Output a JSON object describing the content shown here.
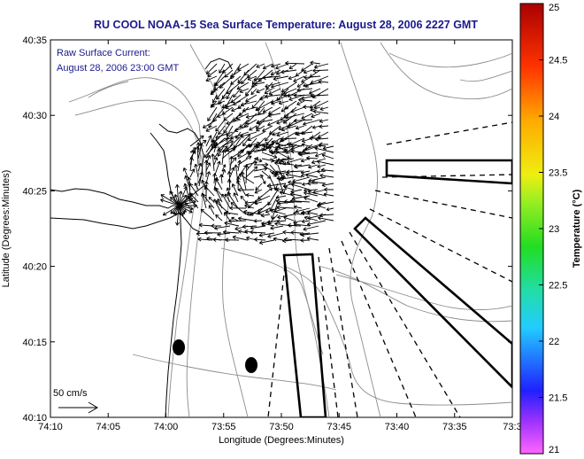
{
  "chart_data": {
    "type": "map",
    "title": "RU COOL  NOAA-15  Sea Surface Temperature:  August 28, 2006 2227 GMT",
    "annotation": [
      "Raw Surface Current:",
      "August 28, 2006 23:00 GMT"
    ],
    "xlabel": "Longitude (Degrees:Minutes)",
    "ylabel": "Latitude (Degrees:Minutes)",
    "x_ticks": [
      "74:10",
      "74:05",
      "74:00",
      "73:55",
      "73:50",
      "73:45",
      "73:40",
      "73:35",
      "73:3"
    ],
    "y_ticks": [
      "40:10",
      "40:15",
      "40:20",
      "40:25",
      "40:30",
      "40:35"
    ],
    "scale_label": "50 cm/s",
    "colorbar": {
      "label": "Temperature (°C)",
      "ticks": [
        "21",
        "21.5",
        "22",
        "22.5",
        "23",
        "23.5",
        "24",
        "24.5",
        "25"
      ],
      "range": [
        21,
        25
      ]
    },
    "grid": false
  }
}
